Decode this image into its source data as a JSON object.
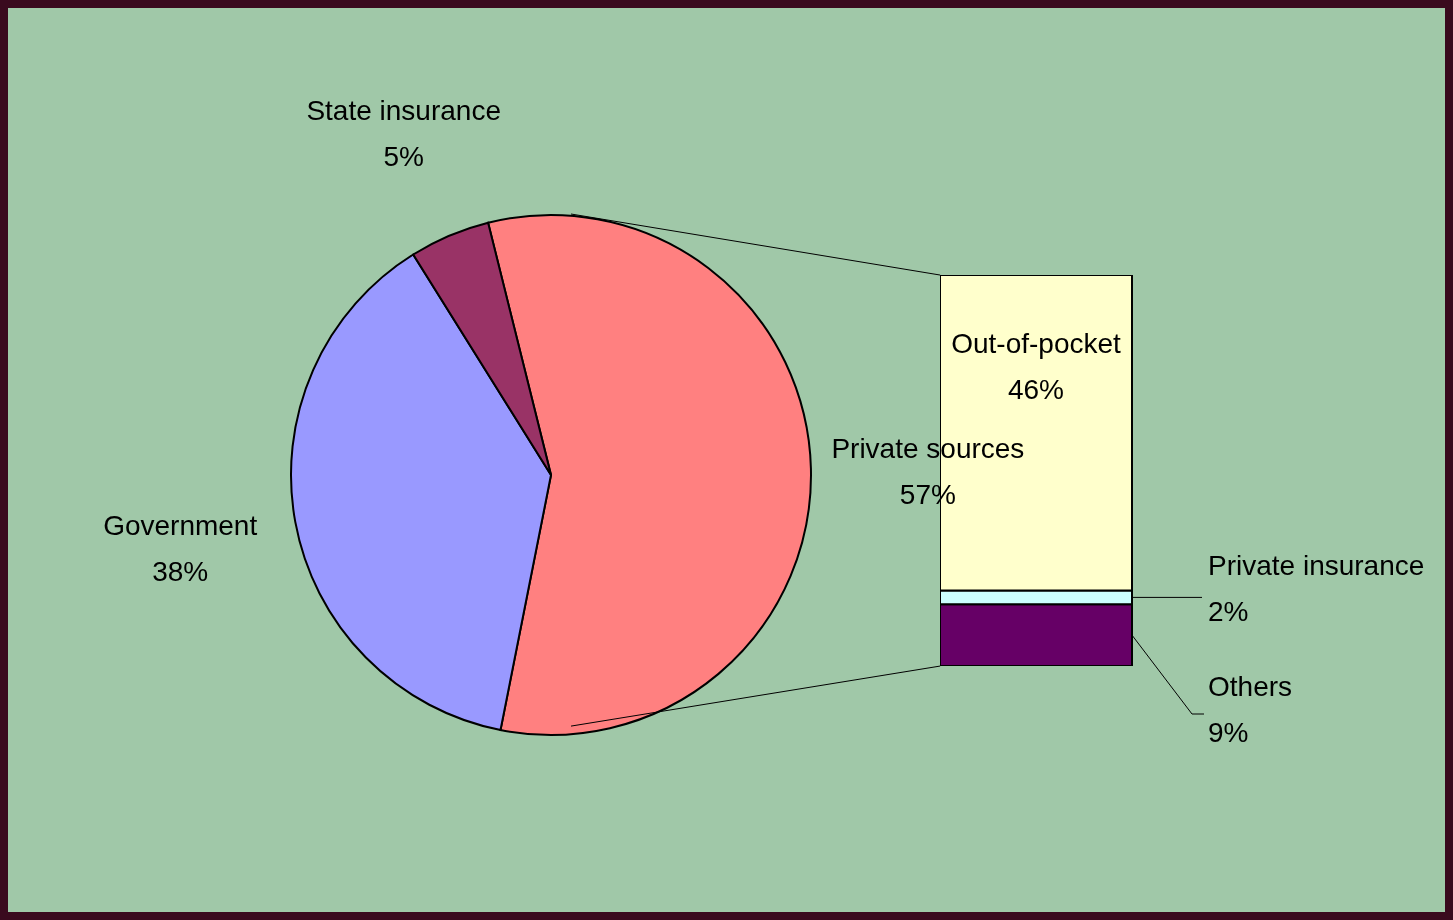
{
  "chart_data": [
    {
      "type": "pie",
      "categories": [
        "Private sources",
        "Government",
        "State insurance"
      ],
      "values": [
        57,
        38,
        5
      ],
      "value_labels": [
        "57%",
        "38%",
        "5%"
      ],
      "colors": [
        "#ff8080",
        "#9999ff",
        "#993366"
      ]
    },
    {
      "type": "bar",
      "stacked": true,
      "categories": [
        null
      ],
      "series": [
        {
          "name": "Others",
          "color": "#660066",
          "values": [
            9
          ],
          "value_labels": [
            "9%"
          ]
        },
        {
          "name": "Private insurance",
          "color": "#ccffff",
          "values": [
            2
          ],
          "value_labels": [
            "2%"
          ]
        },
        {
          "name": "Out-of-pocket",
          "color": "#ffffcc",
          "values": [
            46
          ],
          "value_labels": [
            "46%"
          ]
        }
      ]
    }
  ]
}
